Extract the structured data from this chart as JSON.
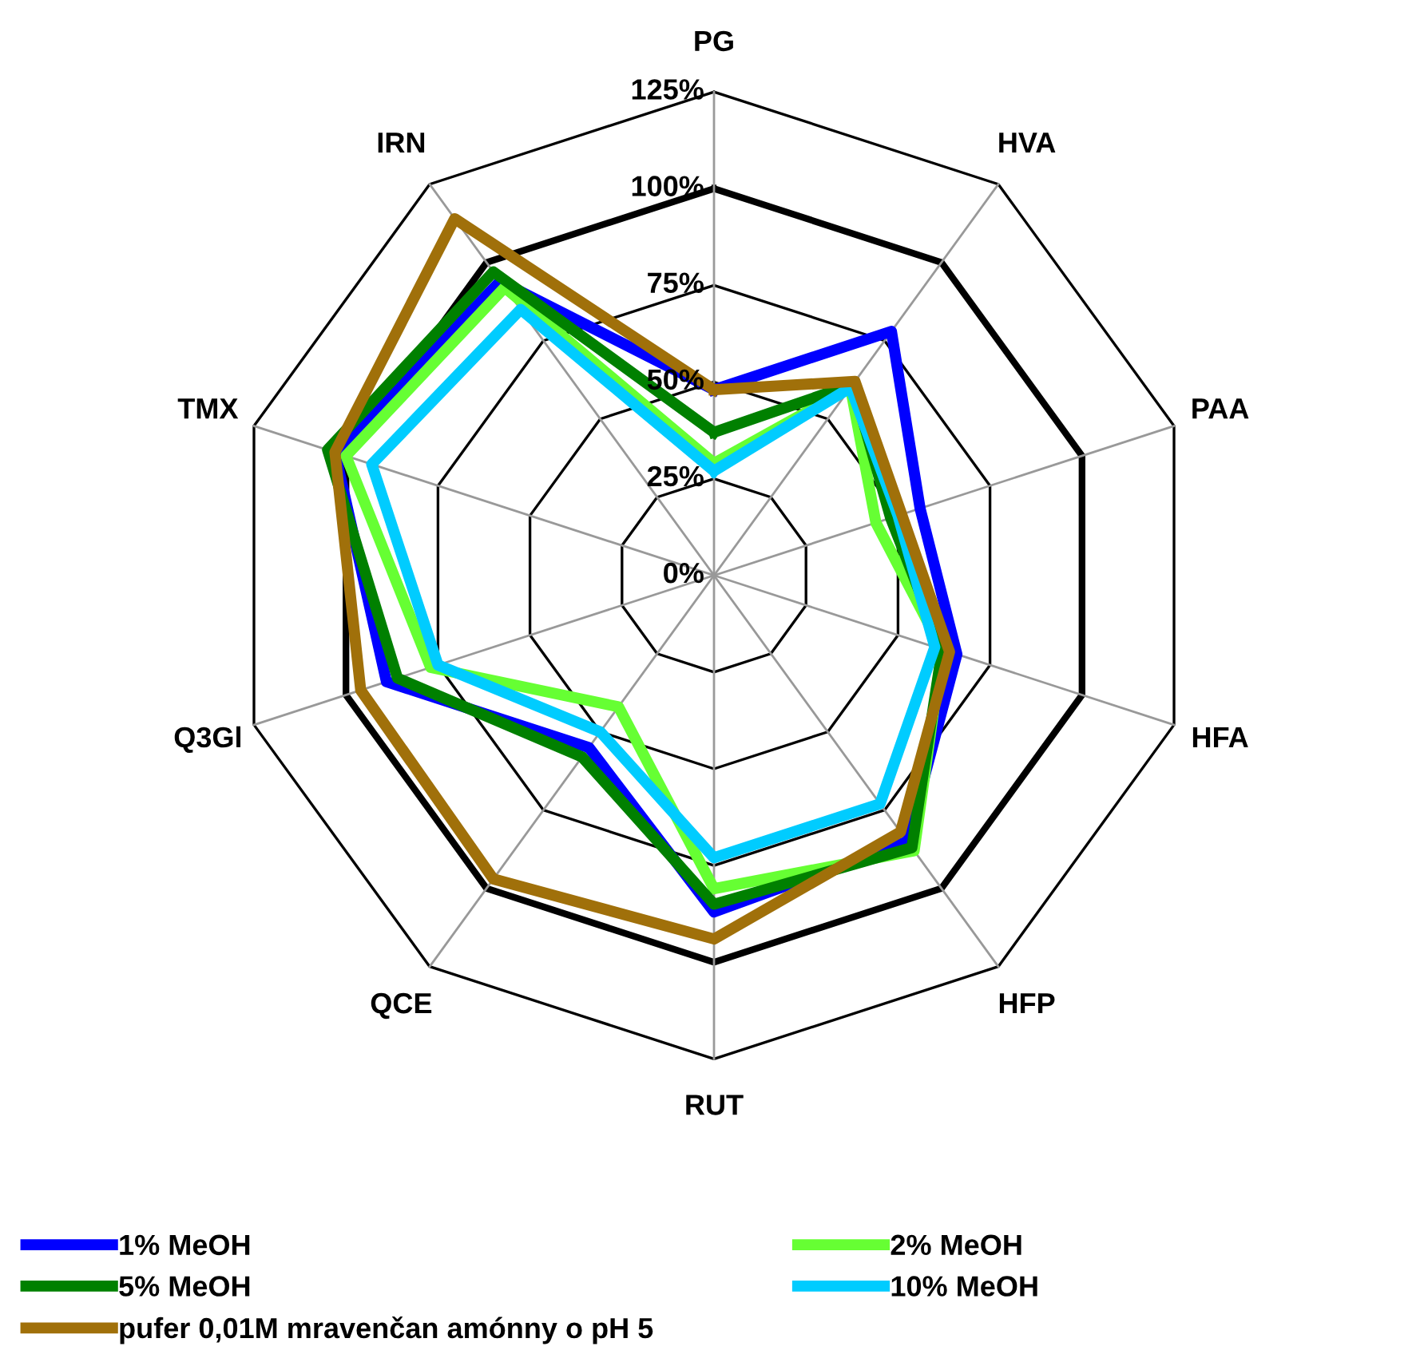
{
  "chart_data": {
    "type": "radar",
    "categories": [
      "PG",
      "HVA",
      "PAA",
      "HFA",
      "HFP",
      "RUT",
      "QCE",
      "Q3Gl",
      "TMX",
      "IRN"
    ],
    "ylim": [
      0,
      125
    ],
    "yticks": [
      {
        "value": 0,
        "label": "0%"
      },
      {
        "value": 25,
        "label": "25%"
      },
      {
        "value": 50,
        "label": "50%"
      },
      {
        "value": 75,
        "label": "75%"
      },
      {
        "value": 100,
        "label": "100%"
      },
      {
        "value": 125,
        "label": "125%"
      }
    ],
    "grid": true,
    "legend": "bottom",
    "marker": "none",
    "line_style": "solid",
    "series": [
      {
        "name": "1% MeOH",
        "color": "#0000ff",
        "values": [
          48,
          78,
          56,
          66,
          85,
          87,
          55,
          89,
          103,
          94
        ]
      },
      {
        "name": "2% MeOH",
        "color": "#66ff33",
        "values": [
          29,
          60,
          44,
          62,
          88,
          81,
          42,
          77,
          100,
          92
        ]
      },
      {
        "name": "5% MeOH",
        "color": "#008000",
        "values": [
          37,
          61,
          48,
          62,
          87,
          85,
          58,
          86,
          105,
          97
        ]
      },
      {
        "name": "10% MeOH",
        "color": "#00ccff",
        "values": [
          27,
          60,
          50,
          60,
          73,
          73,
          50,
          75,
          93,
          85
        ]
      },
      {
        "name": "pufer 0,01M mravenčan amónny o pH 5",
        "color": "#a0700a",
        "values": [
          48,
          62,
          51,
          64,
          82,
          94,
          97,
          96,
          103,
          114
        ]
      }
    ]
  }
}
